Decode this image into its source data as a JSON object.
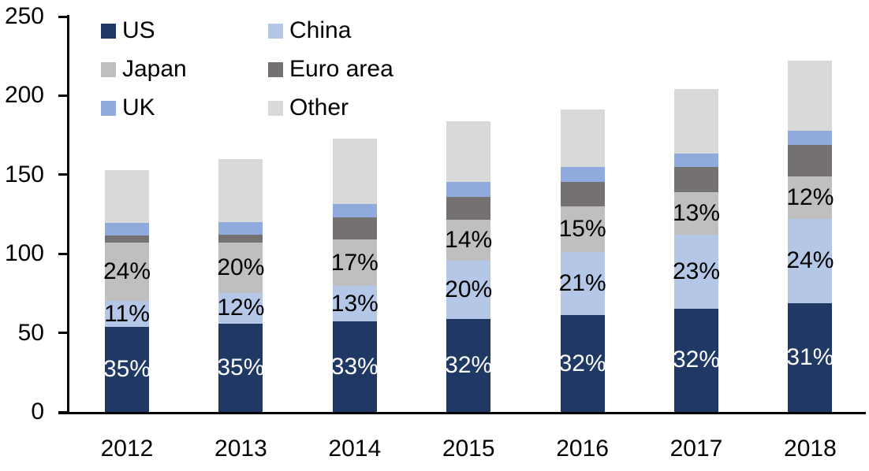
{
  "chart_data": {
    "type": "bar",
    "stacked": true,
    "title": "",
    "categories": [
      "2012",
      "2013",
      "2014",
      "2015",
      "2016",
      "2017",
      "2018"
    ],
    "totals": [
      153,
      160,
      173,
      184,
      191,
      204,
      222
    ],
    "series": [
      {
        "name": "US",
        "color": "#1F3864",
        "label_color": "#FFFFFF",
        "share_pct": [
          35,
          35,
          33,
          32,
          32,
          32,
          31
        ],
        "values": [
          53.6,
          56.0,
          57.1,
          58.9,
          61.1,
          65.3,
          68.8
        ],
        "labels": [
          "35%",
          "35%",
          "33%",
          "32%",
          "32%",
          "32%",
          "31%"
        ]
      },
      {
        "name": "China",
        "color": "#B4C7E7",
        "label_color": "#000000",
        "share_pct": [
          11,
          12,
          13,
          20,
          21,
          23,
          24
        ],
        "values": [
          16.8,
          19.2,
          22.5,
          36.8,
          40.1,
          46.9,
          53.3
        ],
        "labels": [
          "11%",
          "12%",
          "13%",
          "20%",
          "21%",
          "23%",
          "24%"
        ]
      },
      {
        "name": "Japan",
        "color": "#BFBFBF",
        "label_color": "#000000",
        "share_pct": [
          24,
          20,
          17,
          14,
          15,
          13,
          12
        ],
        "values": [
          36.7,
          32.0,
          29.4,
          25.8,
          28.7,
          26.5,
          26.6
        ],
        "labels": [
          "24%",
          "20%",
          "17%",
          "14%",
          "15%",
          "13%",
          "12%"
        ]
      },
      {
        "name": "Euro area",
        "color": "#767171",
        "label_color": null,
        "share_pct": [
          3,
          3,
          8,
          8,
          8,
          8,
          9
        ],
        "values": [
          4.6,
          4.8,
          13.8,
          14.7,
          15.3,
          16.3,
          20.0
        ],
        "labels": null
      },
      {
        "name": "UK",
        "color": "#8FAADC",
        "label_color": null,
        "share_pct": [
          5,
          5,
          5,
          5,
          5,
          4,
          4
        ],
        "values": [
          7.7,
          8.0,
          8.7,
          9.2,
          9.6,
          8.2,
          8.9
        ],
        "labels": null
      },
      {
        "name": "Other",
        "color": "#D9D9D9",
        "label_color": null,
        "share_pct": [
          22,
          25,
          24,
          21,
          19,
          20,
          20
        ],
        "values": [
          33.7,
          40.0,
          41.5,
          38.6,
          36.3,
          40.8,
          44.4
        ],
        "labels": null
      }
    ],
    "yticks": [
      0,
      50,
      100,
      150,
      200,
      250
    ],
    "ylim": [
      0,
      250
    ],
    "grid": false,
    "legend": {
      "position": "top-left",
      "columns": 2
    },
    "axis_color": "#000000",
    "background_color": "#FFFFFF"
  }
}
